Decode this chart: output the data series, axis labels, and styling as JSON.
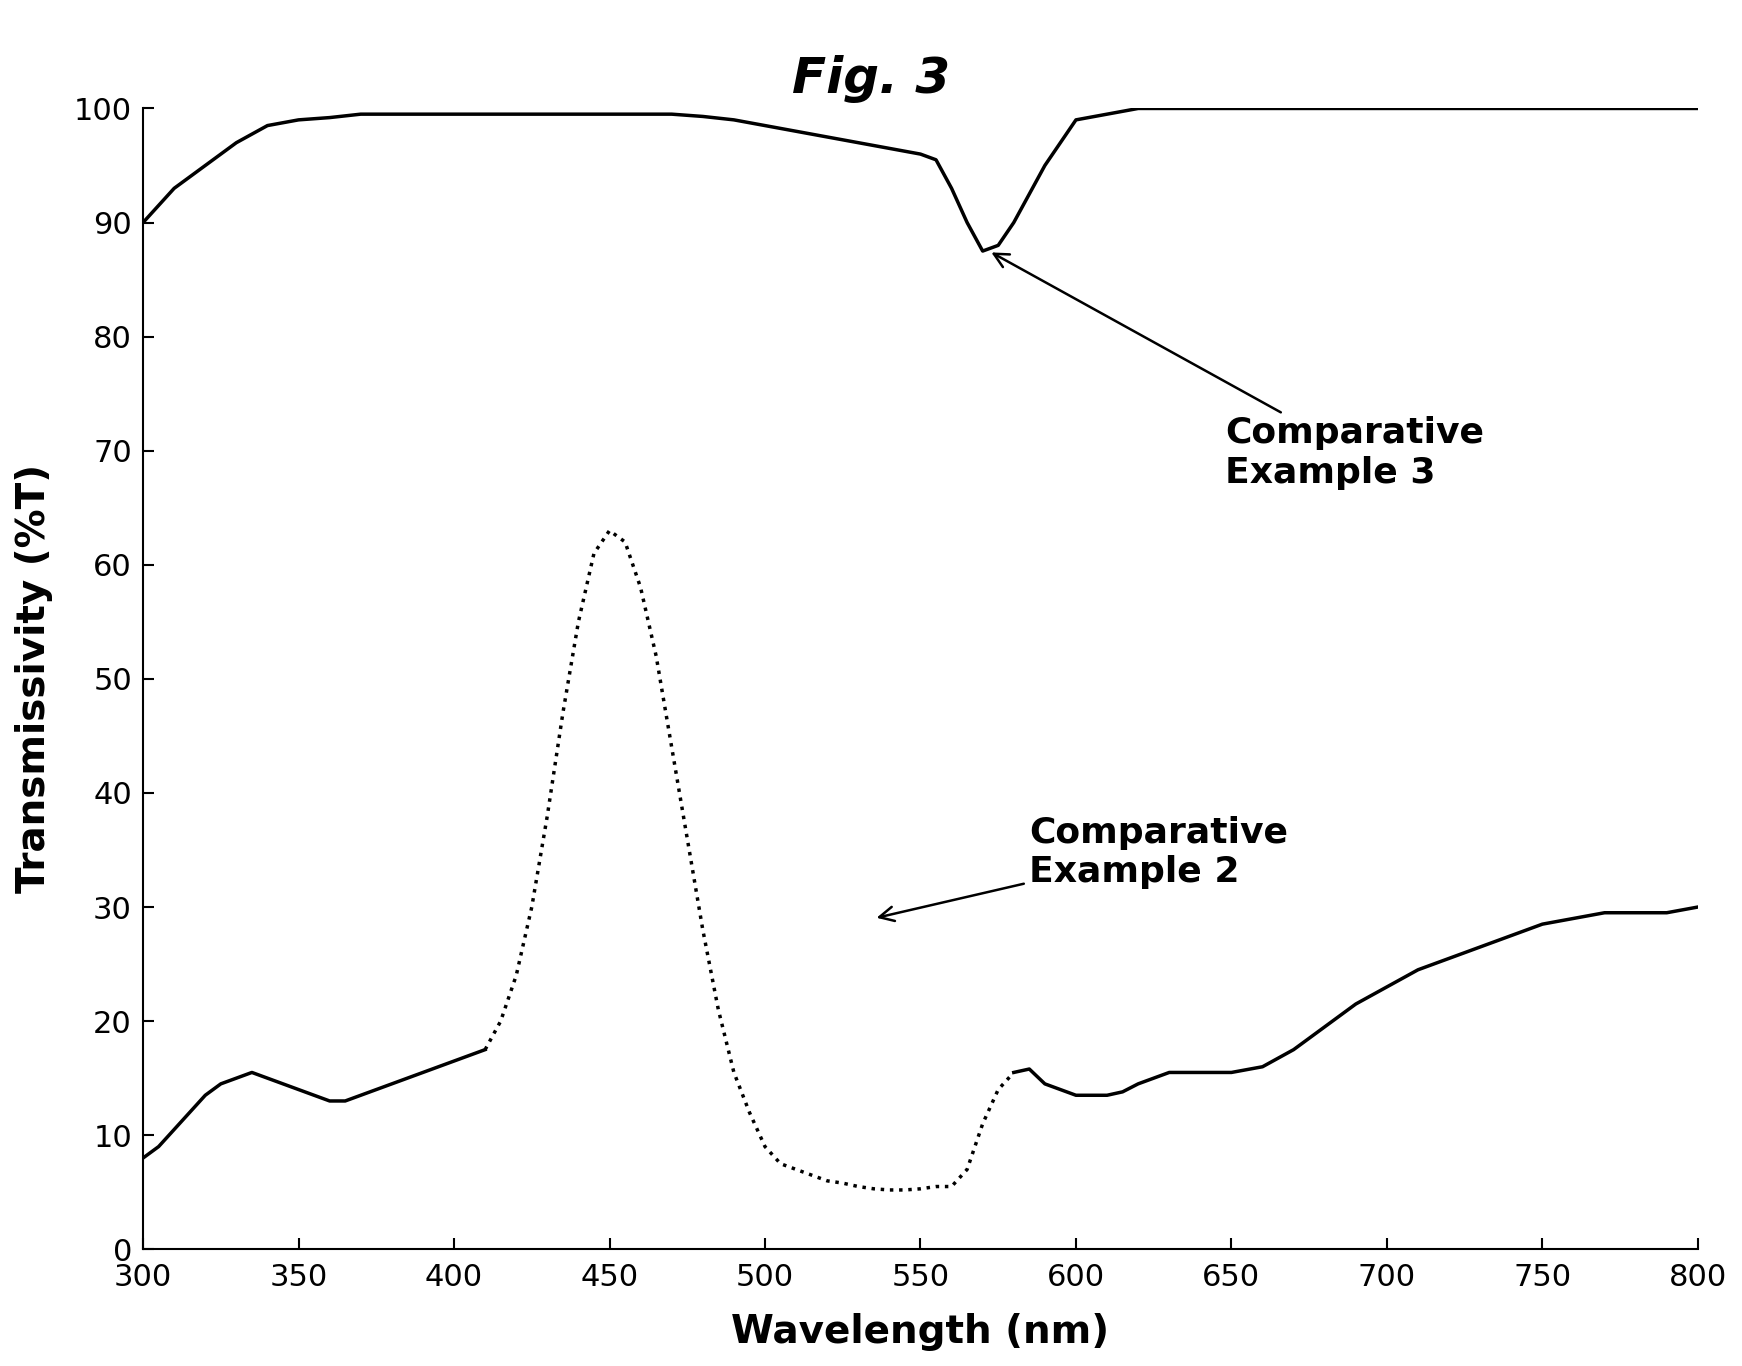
{
  "title": "Fig. 3",
  "xlabel": "Wavelength (nm)",
  "ylabel": "Transmissivity (%T)",
  "xlim": [
    300,
    800
  ],
  "ylim": [
    0,
    100
  ],
  "xticks": [
    300,
    350,
    400,
    450,
    500,
    550,
    600,
    650,
    700,
    750,
    800
  ],
  "yticks": [
    0,
    10,
    20,
    30,
    40,
    50,
    60,
    70,
    80,
    90,
    100
  ],
  "background_color": "#ffffff",
  "line_color": "#000000",
  "title_fontsize": 36,
  "axis_label_fontsize": 28,
  "tick_fontsize": 22,
  "annotation_fontsize": 26,
  "comp3_label": "Comparative\nExample 3",
  "comp2_label": "Comparative\nExample 2",
  "comp3_x": [
    300,
    310,
    320,
    330,
    340,
    350,
    360,
    370,
    380,
    390,
    400,
    410,
    420,
    430,
    440,
    450,
    460,
    470,
    480,
    490,
    500,
    510,
    520,
    530,
    540,
    550,
    555,
    560,
    565,
    570,
    575,
    580,
    590,
    600,
    610,
    620,
    630,
    640,
    650,
    660,
    670,
    680,
    690,
    700,
    710,
    720,
    730,
    740,
    750,
    760,
    770,
    780,
    790,
    800
  ],
  "comp3_y": [
    90,
    93,
    95,
    97,
    98.5,
    99,
    99.2,
    99.5,
    99.5,
    99.5,
    99.5,
    99.5,
    99.5,
    99.5,
    99.5,
    99.5,
    99.5,
    99.5,
    99.3,
    99.0,
    98.5,
    98.0,
    97.5,
    97.0,
    96.5,
    96.0,
    95.5,
    93.0,
    90.0,
    87.5,
    88.0,
    90.0,
    95.0,
    99.0,
    99.5,
    100,
    100,
    100,
    100,
    100,
    100,
    100,
    100,
    100,
    100,
    100,
    100,
    100,
    100,
    100,
    100,
    100,
    100,
    100
  ],
  "comp2_solid_x1": [
    300,
    305,
    310,
    315,
    320,
    325,
    330,
    335,
    340,
    345,
    350,
    355,
    360,
    365,
    370,
    375,
    380,
    385,
    390,
    395,
    400,
    405,
    410
  ],
  "comp2_solid_y1": [
    8,
    9,
    10.5,
    12,
    13.5,
    14.5,
    15,
    15.5,
    15,
    14.5,
    14,
    13.5,
    13,
    13,
    13.5,
    14,
    14.5,
    15,
    15.5,
    16,
    16.5,
    17,
    17.5
  ],
  "comp2_dotted_x": [
    410,
    415,
    420,
    425,
    430,
    435,
    440,
    445,
    450,
    455,
    460,
    465,
    470,
    475,
    480,
    485,
    490,
    495,
    500,
    505,
    510,
    515,
    520,
    525,
    530,
    535,
    540,
    545,
    550,
    555,
    560,
    565,
    570,
    575,
    580
  ],
  "comp2_dotted_y": [
    17.5,
    20,
    24,
    30,
    38,
    47,
    55,
    61,
    63,
    62,
    58,
    52,
    44,
    36,
    28,
    21,
    15.5,
    12,
    9,
    7.5,
    7,
    6.5,
    6,
    5.8,
    5.5,
    5.3,
    5.2,
    5.2,
    5.3,
    5.5,
    5.5,
    7,
    11,
    14,
    15.5
  ],
  "comp2_solid_x2": [
    580,
    585,
    590,
    595,
    600,
    605,
    610,
    615,
    620,
    625,
    630,
    635,
    640,
    645,
    650,
    660,
    670,
    680,
    690,
    700,
    710,
    720,
    730,
    740,
    750,
    760,
    770,
    780,
    790,
    800
  ],
  "comp2_solid_y2": [
    15.5,
    15.8,
    14.5,
    14.0,
    13.5,
    13.5,
    13.5,
    13.8,
    14.5,
    15.0,
    15.5,
    15.5,
    15.5,
    15.5,
    15.5,
    16.0,
    17.5,
    19.5,
    21.5,
    23.0,
    24.5,
    25.5,
    26.5,
    27.5,
    28.5,
    29.0,
    29.5,
    29.5,
    29.5,
    30.0
  ]
}
